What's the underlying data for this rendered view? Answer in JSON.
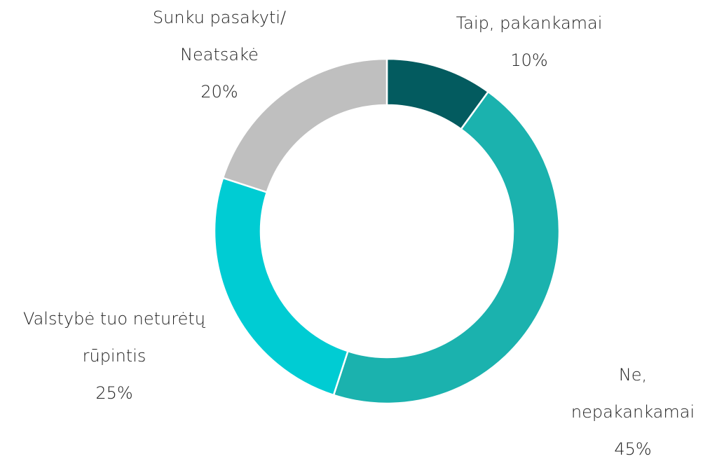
{
  "chart_data": {
    "type": "donut",
    "categories": [
      "Taip, pakankamai",
      "Ne, nepakankamai",
      "Valstybė tuo neturėtų\nrūpintis",
      "Sunku pasakyti/\nNeatsakė"
    ],
    "values": [
      10,
      45,
      25,
      20
    ],
    "value_labels": [
      "10%",
      "45%",
      "25%",
      "20%"
    ],
    "colors": [
      "#035b5f",
      "#1bb2ae",
      "#00ccd3",
      "#bfbfbf"
    ]
  }
}
